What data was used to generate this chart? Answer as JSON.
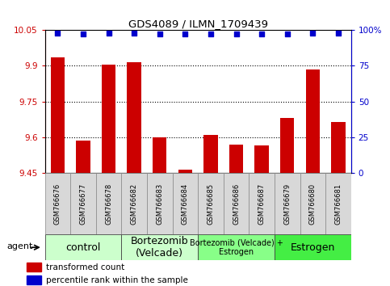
{
  "title": "GDS4089 / ILMN_1709439",
  "samples": [
    "GSM766676",
    "GSM766677",
    "GSM766678",
    "GSM766682",
    "GSM766683",
    "GSM766684",
    "GSM766685",
    "GSM766686",
    "GSM766687",
    "GSM766679",
    "GSM766680",
    "GSM766681"
  ],
  "bar_values": [
    9.935,
    9.585,
    9.905,
    9.915,
    9.6,
    9.465,
    9.61,
    9.57,
    9.565,
    9.68,
    9.885,
    9.665
  ],
  "dot_values": [
    98,
    97,
    98,
    98,
    97,
    97,
    97,
    97,
    97,
    97,
    98,
    98
  ],
  "ylim_left": [
    9.45,
    10.05
  ],
  "ylim_right": [
    0,
    100
  ],
  "yticks_left": [
    9.45,
    9.6,
    9.75,
    9.9,
    10.05
  ],
  "yticks_right": [
    0,
    25,
    50,
    75,
    100
  ],
  "ytick_labels_right": [
    "0",
    "25",
    "50",
    "75",
    "100%"
  ],
  "bar_color": "#cc0000",
  "dot_color": "#0000cc",
  "groups": [
    {
      "label": "control",
      "start": 0,
      "end": 3,
      "color": "#ccffcc",
      "fontsize": 9
    },
    {
      "label": "Bortezomib\n(Velcade)",
      "start": 3,
      "end": 6,
      "color": "#ccffcc",
      "fontsize": 9
    },
    {
      "label": "Bortezomib (Velcade) +\nEstrogen",
      "start": 6,
      "end": 9,
      "color": "#88ff88",
      "fontsize": 7
    },
    {
      "label": "Estrogen",
      "start": 9,
      "end": 12,
      "color": "#44ee44",
      "fontsize": 9
    }
  ],
  "legend_bar_label": "transformed count",
  "legend_dot_label": "percentile rank within the sample",
  "agent_label": "agent",
  "right_axis_color": "#0000cc",
  "tick_label_color_left": "#cc0000",
  "background_color": "#ffffff",
  "grid_lines": [
    9.6,
    9.75,
    9.9
  ]
}
